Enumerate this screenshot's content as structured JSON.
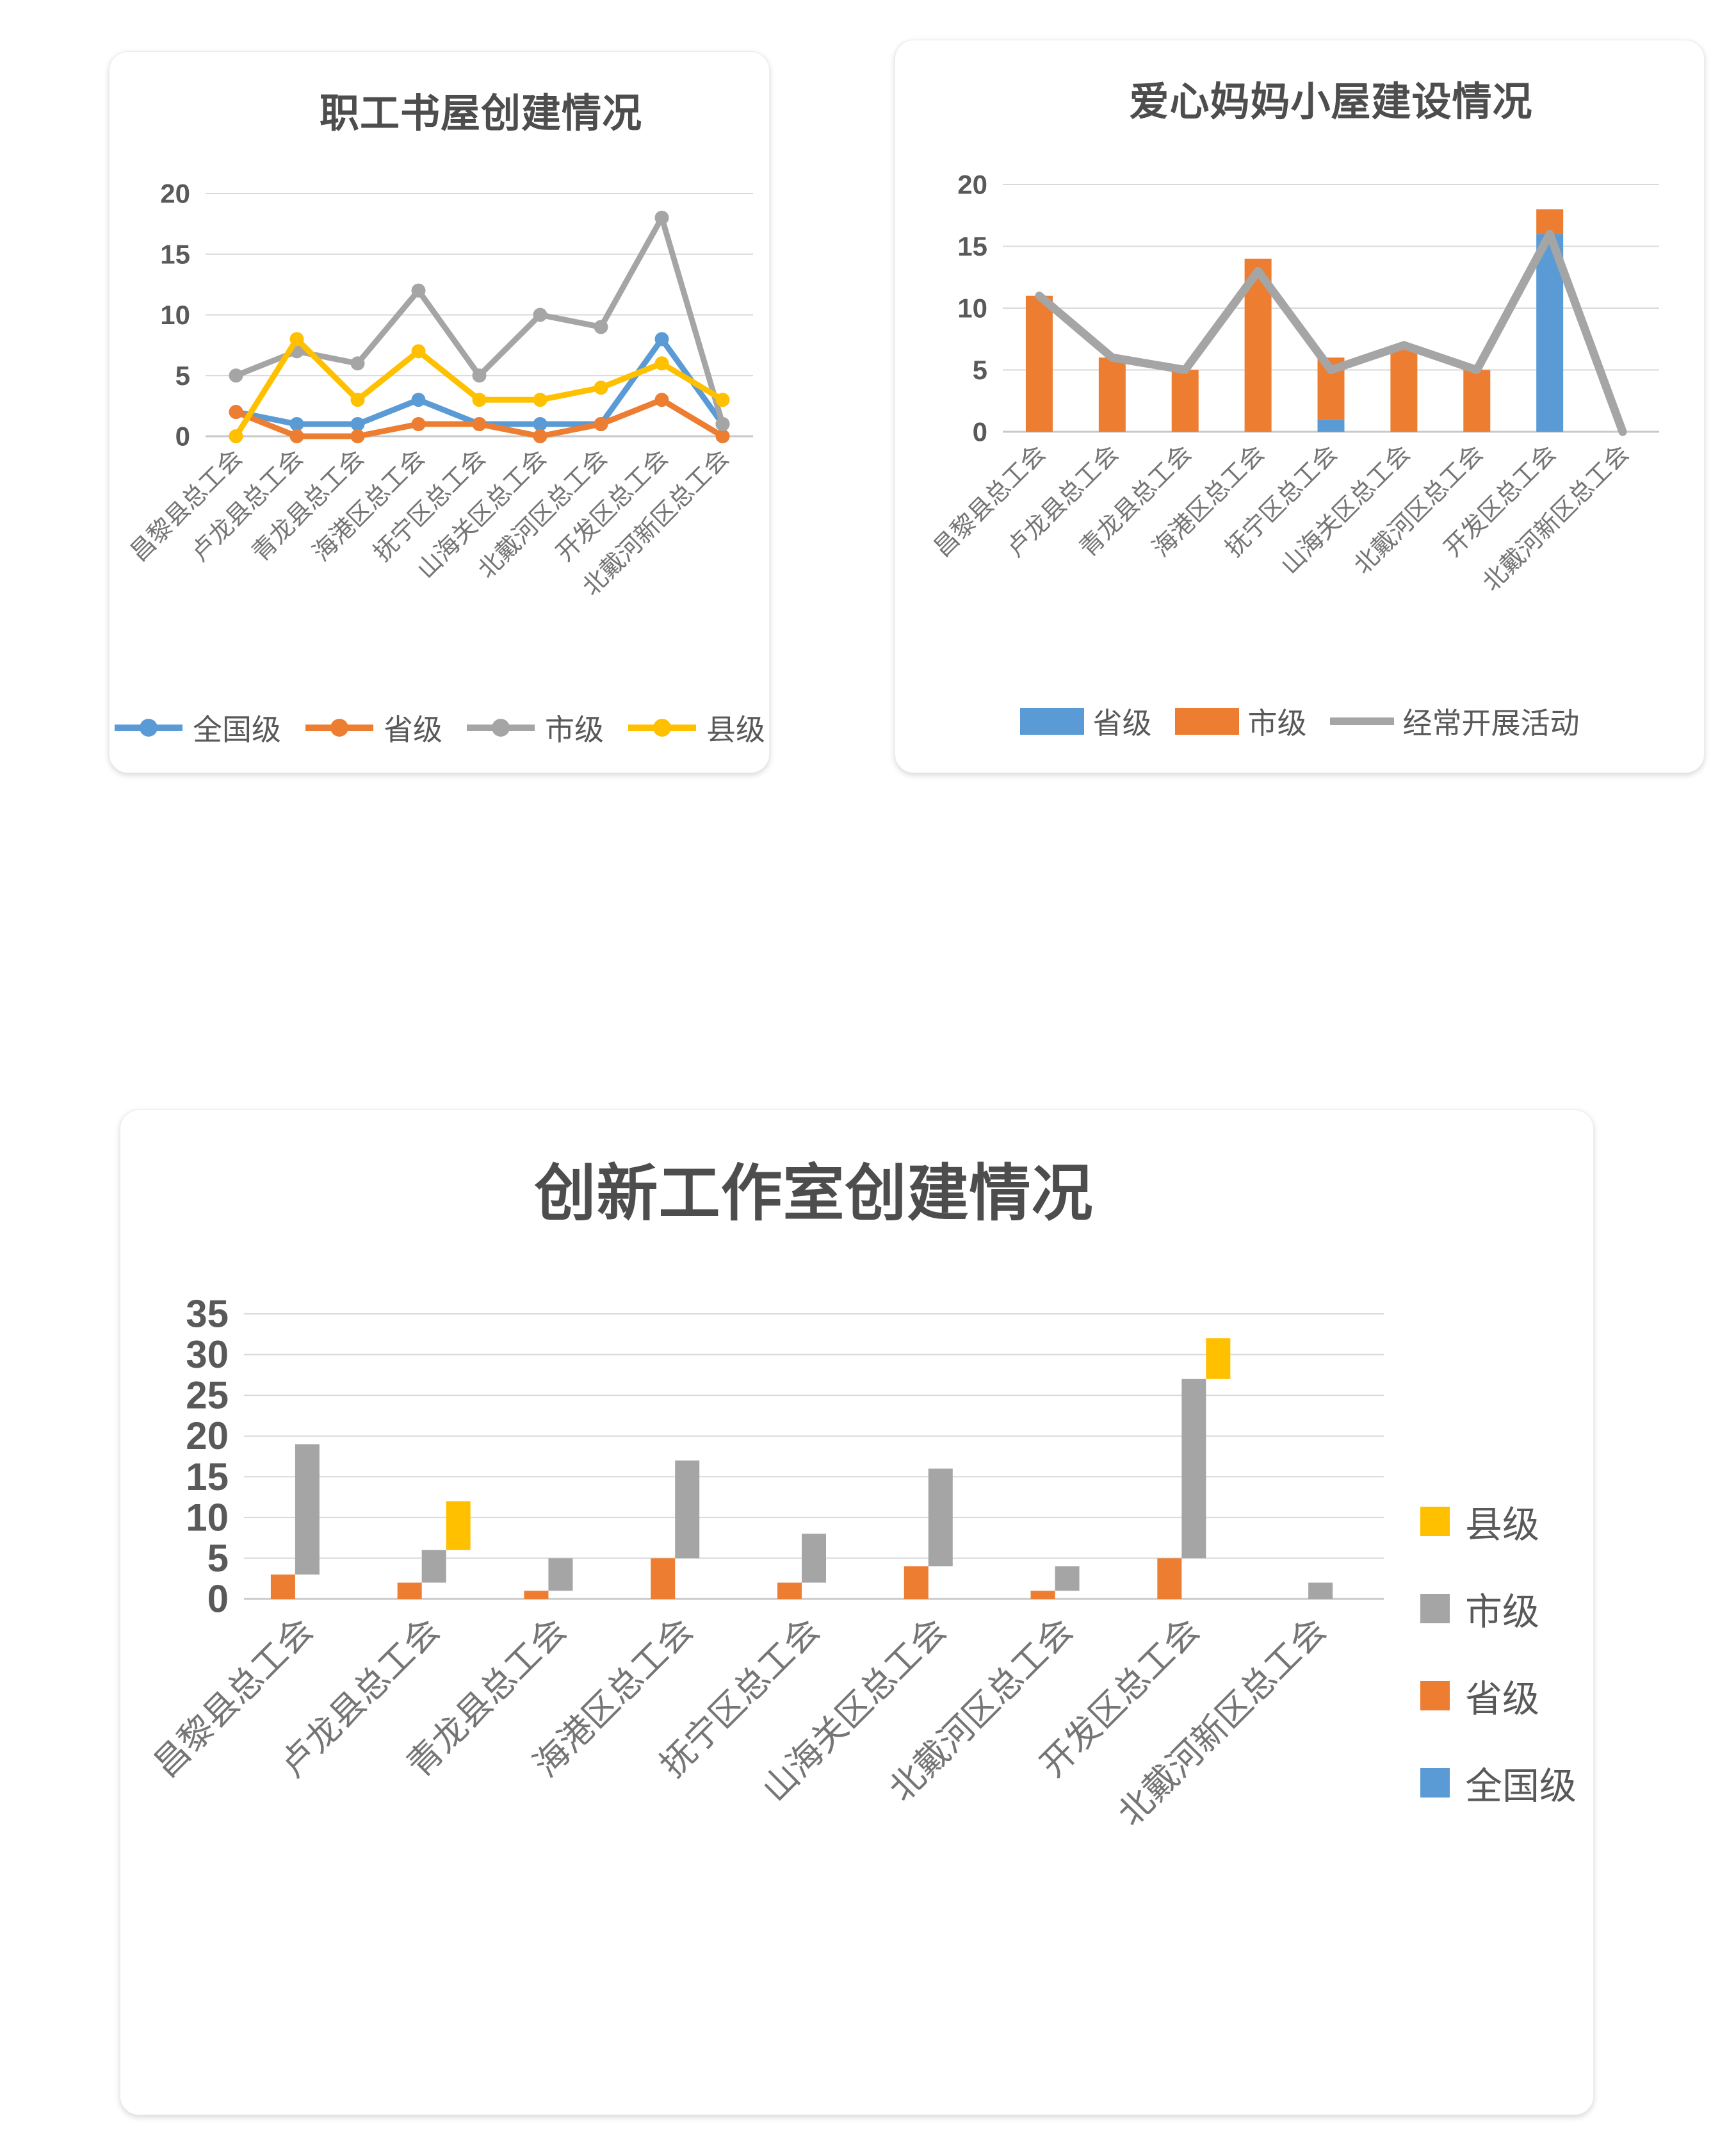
{
  "colors": {
    "blue": "#5B9BD5",
    "orange": "#ED7D31",
    "gray": "#A5A5A5",
    "yellow": "#FFC000",
    "title_text": "#4d4d4d",
    "axis_text": "#595959",
    "category_text": "#757575",
    "gridline": "#d9d9d9",
    "baseline": "#c9c9c9"
  },
  "categories": [
    "昌黎县总工会",
    "卢龙县总工会",
    "青龙县总工会",
    "海港区总工会",
    "抚宁区总工会",
    "山海关区总工会",
    "北戴河区总工会",
    "开发区总工会",
    "北戴河新区总工会"
  ],
  "chart_data": [
    {
      "id": "book-house",
      "type": "line",
      "title": "职工书屋创建情况",
      "categories": [
        "昌黎县总工会",
        "卢龙县总工会",
        "青龙县总工会",
        "海港区总工会",
        "抚宁区总工会",
        "山海关区总工会",
        "北戴河区总工会",
        "开发区总工会",
        "北戴河新区总工会"
      ],
      "series": [
        {
          "name": "全国级",
          "color": "blue",
          "values": [
            2,
            1,
            1,
            3,
            1,
            1,
            1,
            8,
            1
          ]
        },
        {
          "name": "省级",
          "color": "orange",
          "values": [
            2,
            0,
            0,
            1,
            1,
            0,
            1,
            3,
            0
          ]
        },
        {
          "name": "市级",
          "color": "gray",
          "values": [
            5,
            7,
            6,
            12,
            5,
            10,
            9,
            18,
            1
          ]
        },
        {
          "name": "县级",
          "color": "yellow",
          "values": [
            0,
            8,
            3,
            7,
            3,
            3,
            4,
            6,
            3
          ]
        }
      ],
      "ylim": [
        0,
        20
      ],
      "yticks": [
        0,
        5,
        10,
        15,
        20
      ],
      "grid": true,
      "legend_position": "bottom",
      "legend": [
        {
          "label": "全国级",
          "color": "blue",
          "marker": "line-dot"
        },
        {
          "label": "省级",
          "color": "orange",
          "marker": "line-dot"
        },
        {
          "label": "市级",
          "color": "gray",
          "marker": "line-dot"
        },
        {
          "label": "县级",
          "color": "yellow",
          "marker": "line-dot"
        }
      ]
    },
    {
      "id": "mom-hut",
      "type": "bar",
      "title": "爱心妈妈小屋建设情况",
      "categories": [
        "昌黎县总工会",
        "卢龙县总工会",
        "青龙县总工会",
        "海港区总工会",
        "抚宁区总工会",
        "山海关区总工会",
        "北戴河区总工会",
        "开发区总工会",
        "北戴河新区总工会"
      ],
      "series": [
        {
          "name": "省级",
          "kind": "stacked-bar",
          "color": "blue",
          "values": [
            0,
            0,
            0,
            0,
            1,
            0,
            0,
            16,
            0
          ]
        },
        {
          "name": "市级",
          "kind": "stacked-bar",
          "color": "orange",
          "values": [
            11,
            6,
            5,
            14,
            5,
            7,
            5,
            2,
            0
          ]
        },
        {
          "name": "经常开展活动",
          "kind": "line",
          "color": "gray",
          "values": [
            11,
            6,
            5,
            13,
            5,
            7,
            5,
            16,
            0
          ]
        }
      ],
      "ylim": [
        0,
        20
      ],
      "yticks": [
        0,
        5,
        10,
        15,
        20
      ],
      "grid": true,
      "legend_position": "bottom",
      "legend": [
        {
          "label": "省级",
          "color": "blue",
          "marker": "rect"
        },
        {
          "label": "市级",
          "color": "orange",
          "marker": "rect"
        },
        {
          "label": "经常开展活动",
          "color": "gray",
          "marker": "line"
        }
      ]
    },
    {
      "id": "innovation-studio",
      "type": "bar",
      "title": "创新工作室创建情况",
      "categories": [
        "昌黎县总工会",
        "卢龙县总工会",
        "青龙县总工会",
        "海港区总工会",
        "抚宁区总工会",
        "山海关区总工会",
        "北戴河区总工会",
        "开发区总工会",
        "北戴河新区总工会"
      ],
      "series": [
        {
          "name": "省级",
          "kind": "stepped-stack",
          "color": "orange",
          "values": [
            3,
            2,
            1,
            5,
            2,
            4,
            1,
            5,
            0
          ]
        },
        {
          "name": "市级",
          "kind": "stepped-stack",
          "color": "gray",
          "values": [
            16,
            4,
            4,
            12,
            6,
            12,
            3,
            22,
            2
          ]
        },
        {
          "name": "县级",
          "kind": "stepped-stack",
          "color": "yellow",
          "values": [
            0,
            6,
            0,
            0,
            0,
            0,
            0,
            5,
            0
          ]
        },
        {
          "name": "全国级",
          "kind": "stepped-stack",
          "color": "blue",
          "values": [
            0,
            0,
            0,
            0,
            0,
            0,
            0,
            0,
            0
          ]
        }
      ],
      "stack_totals": [
        19,
        12,
        5,
        17,
        8,
        16,
        4,
        32,
        2
      ],
      "ylim": [
        0,
        35
      ],
      "yticks": [
        0,
        5,
        10,
        15,
        20,
        25,
        30,
        35
      ],
      "grid": true,
      "legend_position": "right",
      "legend": [
        {
          "label": "县级",
          "color": "yellow",
          "marker": "square"
        },
        {
          "label": "市级",
          "color": "gray",
          "marker": "square"
        },
        {
          "label": "省级",
          "color": "orange",
          "marker": "square"
        },
        {
          "label": "全国级",
          "color": "blue",
          "marker": "square"
        }
      ]
    }
  ]
}
